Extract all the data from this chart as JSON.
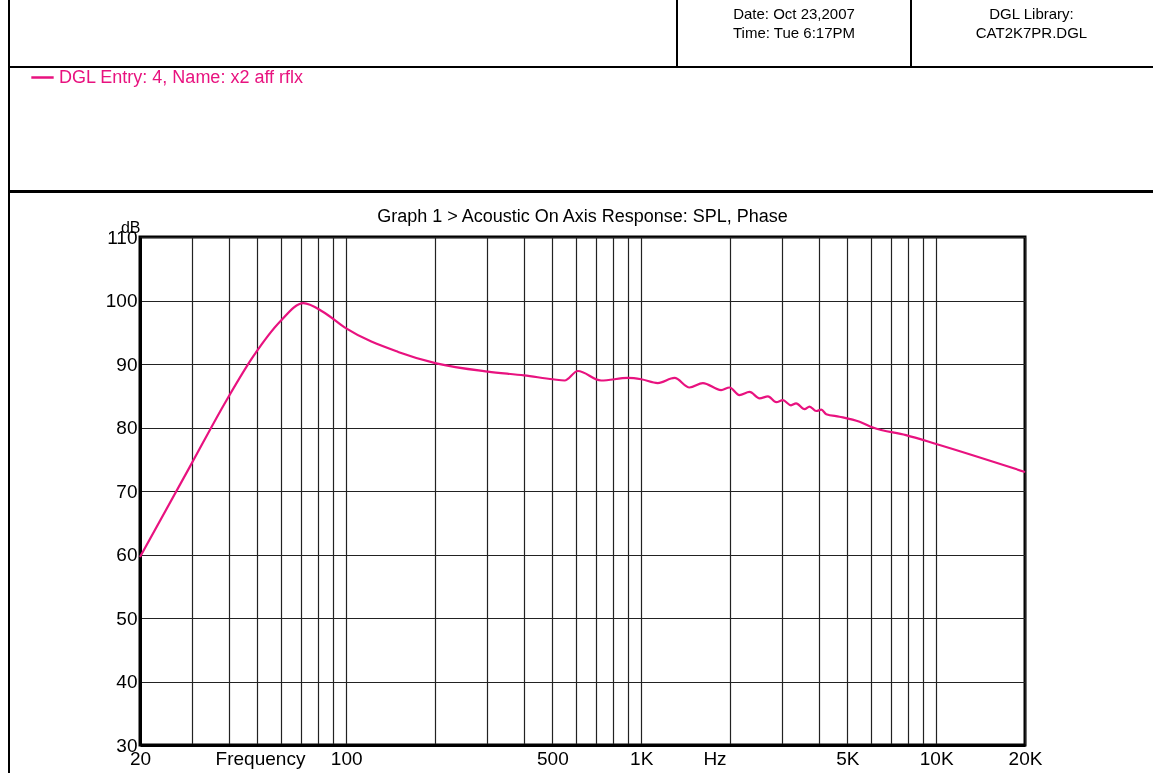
{
  "chart_data": {
    "type": "line",
    "title": "Graph 1 > Acoustic On Axis Response: SPL, Phase",
    "xlabel": "Frequency",
    "ylabel": "dB",
    "annotations": [
      "Hz",
      "Date: Oct 23,2007",
      "Time: Tue  6:17PM",
      "DGL Library:",
      "CAT2K7PR.DGL"
    ],
    "log": "x",
    "grid": true,
    "legend": "top left",
    "line_style": "solid",
    "marker": "none",
    "xlim": [
      20,
      20000
    ],
    "ylim": [
      30,
      110
    ],
    "xticks": [
      20,
      {
        "value": 30,
        "label": null
      },
      {
        "value": 40,
        "label": null
      },
      {
        "value": 50,
        "label": null
      },
      {
        "value": 60,
        "label": null
      },
      {
        "value": 70,
        "label": null
      },
      {
        "value": 80,
        "label": null
      },
      {
        "value": 90,
        "label": null
      },
      100,
      {
        "value": 200,
        "label": null
      },
      {
        "value": 300,
        "label": null
      },
      {
        "value": 400,
        "label": null
      },
      500,
      {
        "value": 600,
        "label": null
      },
      {
        "value": 700,
        "label": null
      },
      {
        "value": 800,
        "label": null
      },
      {
        "value": 900,
        "label": null
      },
      {
        "value": 1000,
        "label": "1K"
      },
      {
        "value": 2000,
        "label": null
      },
      {
        "value": 3000,
        "label": null
      },
      {
        "value": 4000,
        "label": null
      },
      {
        "value": 5000,
        "label": "5K"
      },
      {
        "value": 6000,
        "label": null
      },
      {
        "value": 7000,
        "label": null
      },
      {
        "value": 8000,
        "label": null
      },
      {
        "value": 9000,
        "label": null
      },
      {
        "value": 10000,
        "label": "10K"
      },
      {
        "value": 20000,
        "label": "20K"
      }
    ],
    "yticks": [
      30,
      40,
      50,
      60,
      70,
      80,
      90,
      100,
      110
    ],
    "series": [
      {
        "name": "DGL Entry: 4, Name: x2 aff rflx",
        "color": "#e8127f",
        "x": [
          20,
          29.5,
          39.3,
          48.4,
          59.7,
          71.6,
          83.6,
          100,
          150,
          202,
          302,
          401,
          502,
          550,
          610,
          731,
          902,
          1000,
          1138,
          1297,
          1458,
          1618,
          1866,
          1992,
          2153,
          2330,
          2520,
          2690,
          2870,
          3020,
          3220,
          3350,
          3580,
          3720,
          3920,
          4080,
          4240,
          4700,
          5500,
          6100,
          7900,
          10000,
          20000
        ],
        "values": [
          59.6,
          73.8,
          84.3,
          91.2,
          96.7,
          99.6,
          98.2,
          95.6,
          91.9,
          90.1,
          88.8,
          88.2,
          87.6,
          87.4,
          88.9,
          87.4,
          87.8,
          87.6,
          87.0,
          87.8,
          86.3,
          87.0,
          85.9,
          86.3,
          85.1,
          85.6,
          84.6,
          84.9,
          84.0,
          84.3,
          83.5,
          83.8,
          82.9,
          83.3,
          82.6,
          82.8,
          82.1,
          81.7,
          80.9,
          80.0,
          78.8,
          77.4,
          73.0
        ]
      }
    ]
  }
}
